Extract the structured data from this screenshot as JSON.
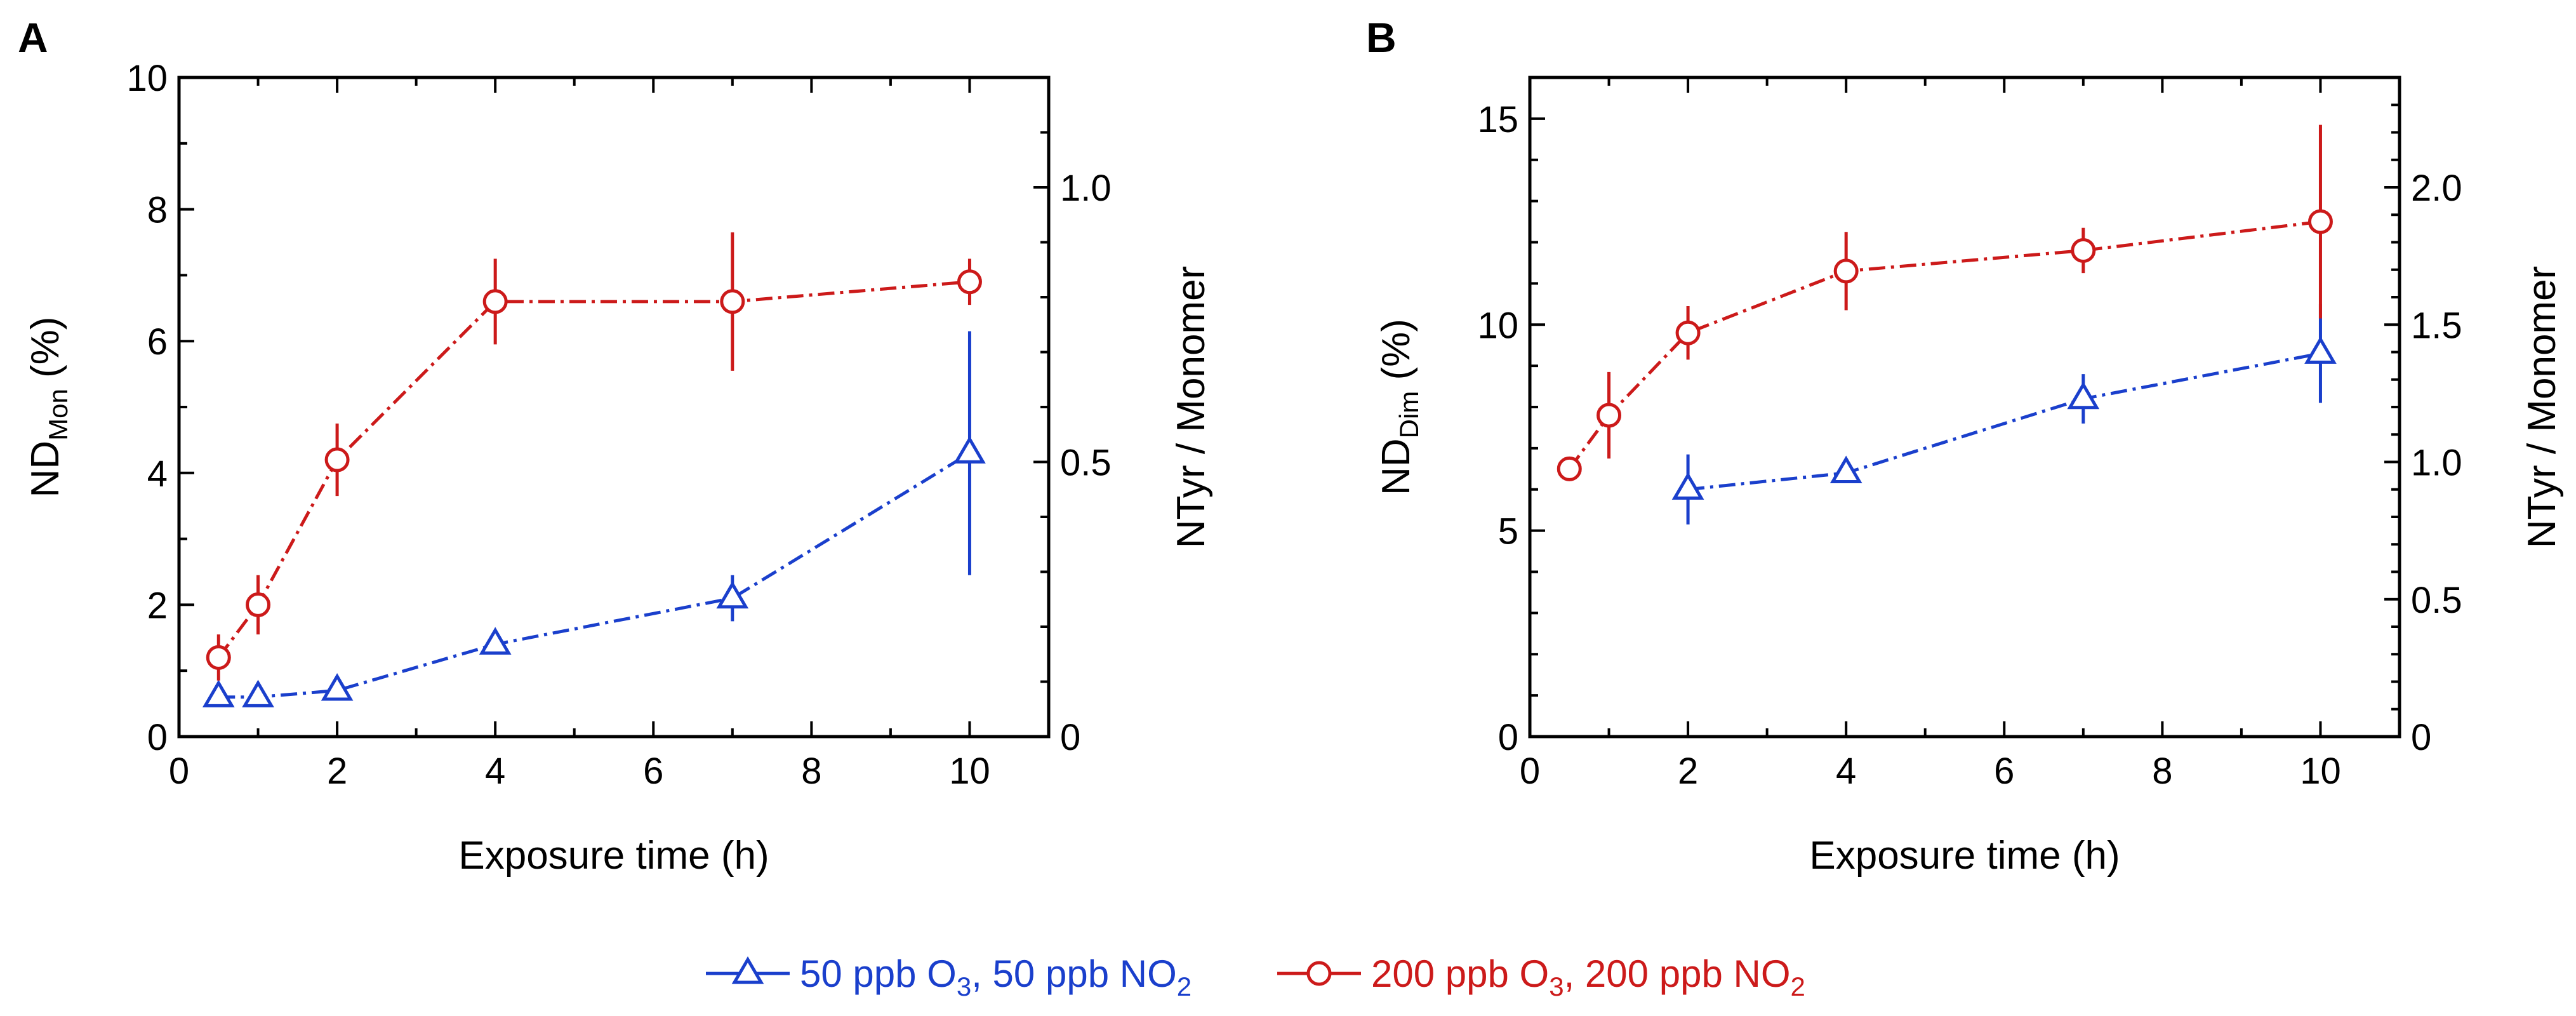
{
  "legend": {
    "series": [
      {
        "name": "50 ppb O",
        "sub1": "3",
        "mid": ", 50 ppb NO",
        "sub2": "2",
        "color": "#1a3fcc",
        "marker": "triangle"
      },
      {
        "name": "200 ppb O",
        "sub1": "3",
        "mid": ", 200 ppb NO",
        "sub2": "2",
        "color": "#cc1a1a",
        "marker": "circle"
      }
    ]
  },
  "chart_data": [
    {
      "panel": "A",
      "type": "line",
      "xlabel": "Exposure time (h)",
      "ylabel": {
        "base": "ND",
        "sub": "Mon",
        "suffix": " (%)"
      },
      "y2label": "NTyr / Monomer",
      "xlim": [
        0,
        11
      ],
      "ylim": [
        0,
        10
      ],
      "y2lim": [
        0,
        1.2
      ],
      "xticks": [
        0,
        2,
        4,
        6,
        8,
        10
      ],
      "yticks": [
        0,
        2,
        4,
        6,
        8,
        10
      ],
      "y2ticks": [
        0,
        0.5,
        1.0
      ],
      "y2ticklabels": [
        "0",
        "0.5",
        "1.0"
      ],
      "series": [
        {
          "name": "50 ppb O3, 50 ppb NO2",
          "color": "#1a3fcc",
          "marker": "triangle",
          "x": [
            0.5,
            1,
            2,
            4,
            7,
            10
          ],
          "y": [
            0.6,
            0.6,
            0.7,
            1.4,
            2.1,
            4.3
          ],
          "yerr": [
            0,
            0,
            0,
            0.15,
            0.35,
            1.85
          ]
        },
        {
          "name": "200 ppb O3, 200 ppb NO2",
          "color": "#cc1a1a",
          "marker": "circle",
          "x": [
            0.5,
            1,
            2,
            4,
            7,
            10
          ],
          "y": [
            1.2,
            2.0,
            4.2,
            6.6,
            6.6,
            6.9
          ],
          "yerr": [
            0.35,
            0.45,
            0.55,
            0.65,
            1.05,
            0.35
          ]
        }
      ]
    },
    {
      "panel": "B",
      "type": "line",
      "xlabel": "Exposure time (h)",
      "ylabel": {
        "base": "ND",
        "sub": "Dim",
        "suffix": " (%)"
      },
      "y2label": "NTyr / Monomer",
      "xlim": [
        0,
        11
      ],
      "ylim": [
        0,
        16
      ],
      "y2lim": [
        0,
        2.4
      ],
      "xticks": [
        0,
        2,
        4,
        6,
        8,
        10
      ],
      "yticks": [
        0,
        5,
        10,
        15
      ],
      "y2ticks": [
        0,
        0.5,
        1.0,
        1.5,
        2.0
      ],
      "y2ticklabels": [
        "0",
        "0.5",
        "1.0",
        "1.5",
        "2.0"
      ],
      "series": [
        {
          "name": "50 ppb O3, 50 ppb NO2",
          "color": "#1a3fcc",
          "marker": "triangle",
          "x": [
            2,
            4,
            7,
            10
          ],
          "y": [
            6.0,
            6.4,
            8.2,
            9.3
          ],
          "yerr": [
            0.85,
            0.2,
            0.6,
            1.2
          ]
        },
        {
          "name": "200 ppb O3, 200 ppb NO2",
          "color": "#cc1a1a",
          "marker": "circle",
          "x": [
            0.5,
            1,
            2,
            4,
            7,
            10
          ],
          "y": [
            6.5,
            7.8,
            9.8,
            11.3,
            11.8,
            12.5
          ],
          "yerr": [
            0,
            1.05,
            0.65,
            0.95,
            0.55,
            2.35
          ]
        }
      ]
    }
  ]
}
